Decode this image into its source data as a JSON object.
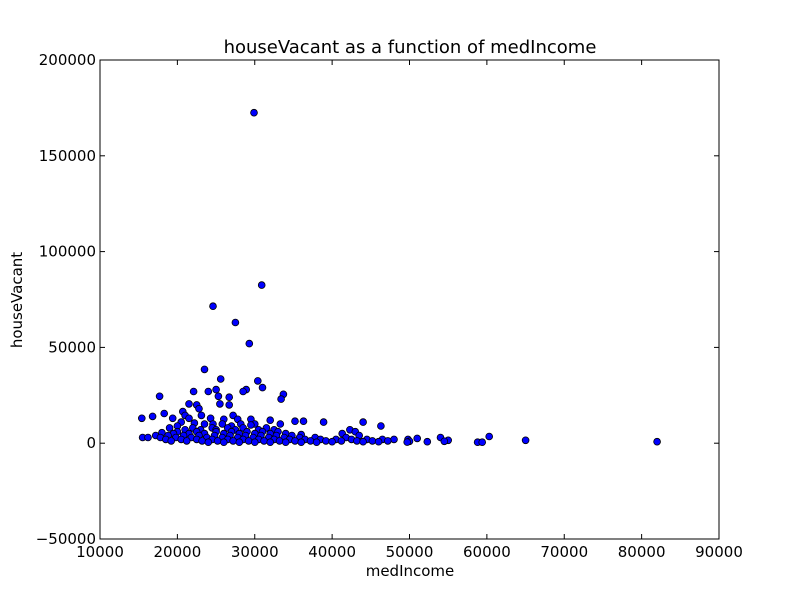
{
  "chart_data": {
    "type": "scatter",
    "title": "houseVacant as a function of medIncome",
    "xlabel": "medIncome",
    "ylabel": "houseVacant",
    "xlim": [
      10000,
      90000
    ],
    "ylim": [
      -50000,
      200000
    ],
    "xticks": [
      10000,
      20000,
      30000,
      40000,
      50000,
      60000,
      70000,
      80000,
      90000
    ],
    "yticks": [
      -50000,
      0,
      50000,
      100000,
      150000,
      200000
    ],
    "xtick_labels": [
      "10000",
      "20000",
      "30000",
      "40000",
      "50000",
      "60000",
      "70000",
      "80000",
      "90000"
    ],
    "ytick_labels": [
      "−50000",
      "0",
      "50000",
      "100000",
      "150000",
      "200000"
    ],
    "marker_color": "#0000ff",
    "marker_edge": "#000000",
    "grid": false,
    "points": [
      [
        29900,
        172500
      ],
      [
        30900,
        82500
      ],
      [
        24600,
        71500
      ],
      [
        27500,
        63000
      ],
      [
        29300,
        52000
      ],
      [
        23500,
        38500
      ],
      [
        30400,
        32500
      ],
      [
        25600,
        33500
      ],
      [
        31000,
        29000
      ],
      [
        28900,
        28000
      ],
      [
        25000,
        28000
      ],
      [
        22100,
        27000
      ],
      [
        24000,
        27000
      ],
      [
        28500,
        27000
      ],
      [
        33700,
        25500
      ],
      [
        33400,
        23000
      ],
      [
        17700,
        24500
      ],
      [
        26700,
        24000
      ],
      [
        25300,
        24500
      ],
      [
        22500,
        20000
      ],
      [
        21500,
        20500
      ],
      [
        25500,
        20500
      ],
      [
        26700,
        20000
      ],
      [
        22800,
        18000
      ],
      [
        20700,
        16500
      ],
      [
        18300,
        15500
      ],
      [
        21000,
        14500
      ],
      [
        27200,
        14500
      ],
      [
        23100,
        14500
      ],
      [
        16800,
        14000
      ],
      [
        15400,
        13000
      ],
      [
        19400,
        13000
      ],
      [
        21500,
        13000
      ],
      [
        24300,
        13000
      ],
      [
        26000,
        12500
      ],
      [
        27800,
        12500
      ],
      [
        29500,
        12500
      ],
      [
        32000,
        12000
      ],
      [
        35200,
        11500
      ],
      [
        36300,
        11500
      ],
      [
        38900,
        11000
      ],
      [
        44000,
        11000
      ],
      [
        20500,
        11000
      ],
      [
        22200,
        10500
      ],
      [
        23500,
        10000
      ],
      [
        24600,
        10000
      ],
      [
        25800,
        10000
      ],
      [
        28200,
        10000
      ],
      [
        30000,
        10000
      ],
      [
        33300,
        10000
      ],
      [
        20000,
        9000
      ],
      [
        27000,
        9000
      ],
      [
        29500,
        9500
      ],
      [
        46300,
        9000
      ],
      [
        19000,
        8000
      ],
      [
        22000,
        8000
      ],
      [
        24500,
        8000
      ],
      [
        26500,
        8000
      ],
      [
        28500,
        8000
      ],
      [
        31500,
        8000
      ],
      [
        42300,
        7000
      ],
      [
        21000,
        7000
      ],
      [
        23000,
        7000
      ],
      [
        25000,
        7000
      ],
      [
        27500,
        7000
      ],
      [
        30500,
        7000
      ],
      [
        32500,
        7000
      ],
      [
        43000,
        6000
      ],
      [
        41300,
        5000
      ],
      [
        18000,
        5500
      ],
      [
        20000,
        6000
      ],
      [
        22500,
        6000
      ],
      [
        25000,
        6000
      ],
      [
        27000,
        6000
      ],
      [
        29000,
        6000
      ],
      [
        31000,
        6000
      ],
      [
        33000,
        6000
      ],
      [
        19500,
        5000
      ],
      [
        21500,
        5000
      ],
      [
        23500,
        5000
      ],
      [
        26000,
        5000
      ],
      [
        28000,
        5000
      ],
      [
        30000,
        5000
      ],
      [
        32000,
        5000
      ],
      [
        34000,
        5000
      ],
      [
        36000,
        4500
      ],
      [
        17200,
        4000
      ],
      [
        18800,
        4000
      ],
      [
        20800,
        4000
      ],
      [
        22800,
        4000
      ],
      [
        24800,
        4000
      ],
      [
        26800,
        4000
      ],
      [
        28800,
        4000
      ],
      [
        30800,
        4000
      ],
      [
        32800,
        4000
      ],
      [
        34800,
        4000
      ],
      [
        43500,
        4000
      ],
      [
        60300,
        3500
      ],
      [
        15500,
        3000
      ],
      [
        16200,
        3000
      ],
      [
        17800,
        3000
      ],
      [
        19800,
        3000
      ],
      [
        21800,
        3000
      ],
      [
        23800,
        3000
      ],
      [
        25800,
        3000
      ],
      [
        27800,
        3000
      ],
      [
        29800,
        3000
      ],
      [
        31800,
        3000
      ],
      [
        33800,
        3000
      ],
      [
        35800,
        3000
      ],
      [
        37800,
        3000
      ],
      [
        41800,
        3000
      ],
      [
        54000,
        3000
      ],
      [
        51000,
        2500
      ],
      [
        18500,
        2000
      ],
      [
        20500,
        2000
      ],
      [
        22500,
        2000
      ],
      [
        24500,
        2000
      ],
      [
        26500,
        2000
      ],
      [
        28500,
        2000
      ],
      [
        30500,
        2000
      ],
      [
        32500,
        2000
      ],
      [
        34500,
        2000
      ],
      [
        36500,
        2000
      ],
      [
        38500,
        2000
      ],
      [
        40500,
        2000
      ],
      [
        42500,
        2000
      ],
      [
        44500,
        2000
      ],
      [
        46500,
        2000
      ],
      [
        48000,
        2000
      ],
      [
        49800,
        2000
      ],
      [
        55000,
        1500
      ],
      [
        19200,
        1200
      ],
      [
        21200,
        1200
      ],
      [
        23200,
        1200
      ],
      [
        25200,
        1200
      ],
      [
        27200,
        1200
      ],
      [
        29200,
        1200
      ],
      [
        31200,
        1200
      ],
      [
        33200,
        1200
      ],
      [
        35200,
        1200
      ],
      [
        37200,
        1200
      ],
      [
        39200,
        1200
      ],
      [
        41200,
        1200
      ],
      [
        43200,
        1200
      ],
      [
        45200,
        1200
      ],
      [
        47200,
        1200
      ],
      [
        50000,
        1000
      ],
      [
        52300,
        800
      ],
      [
        54500,
        1000
      ],
      [
        65000,
        1500
      ],
      [
        58800,
        500
      ],
      [
        59400,
        500
      ],
      [
        82000,
        800
      ],
      [
        36000,
        500
      ],
      [
        38000,
        500
      ],
      [
        40000,
        800
      ],
      [
        44000,
        800
      ],
      [
        46000,
        800
      ],
      [
        49700,
        600
      ],
      [
        24000,
        500
      ],
      [
        26000,
        500
      ],
      [
        28000,
        500
      ],
      [
        30000,
        500
      ],
      [
        32000,
        500
      ],
      [
        34000,
        500
      ]
    ]
  }
}
